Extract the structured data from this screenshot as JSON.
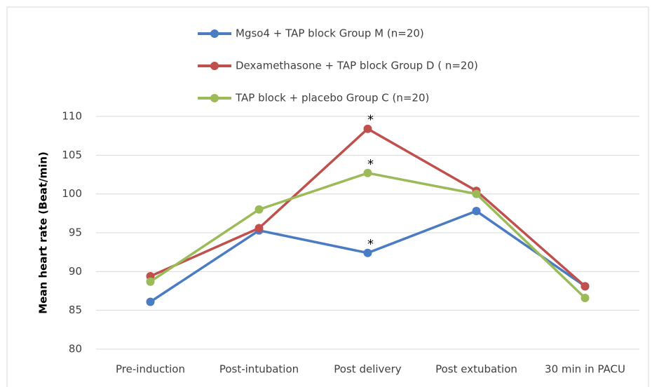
{
  "chart_data": {
    "type": "line",
    "y_label": "Mean heart rate (Beat/min)",
    "categories": [
      "Pre-induction",
      "Post-intubation",
      "Post delivery",
      "Post extubation",
      "30 min in PACU"
    ],
    "series": [
      {
        "name": "Mgso4 + TAP block Group M (n=20)",
        "color": "#4a7cc4",
        "values": [
          86.1,
          95.3,
          92.4,
          97.8,
          88.1
        ]
      },
      {
        "name": "Dexamethasone + TAP block Group D ( n=20)",
        "color": "#c0504d",
        "values": [
          89.4,
          95.6,
          108.4,
          100.4,
          88.1
        ]
      },
      {
        "name": "TAP block + placebo Group C (n=20)",
        "color": "#9bbb59",
        "values": [
          88.7,
          98.0,
          102.7,
          100.0,
          86.6
        ]
      }
    ],
    "annotations": [
      "*",
      "*",
      "*"
    ],
    "ylim": [
      80,
      110
    ],
    "yticks": [
      80,
      85,
      90,
      95,
      100,
      105,
      110
    ],
    "grid": true
  }
}
